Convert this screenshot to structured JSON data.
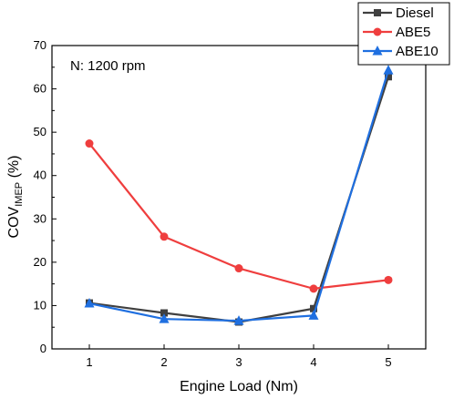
{
  "chart_data": {
    "type": "line",
    "annotation": "N: 1200 rpm",
    "xlabel": "Engine Load (Nm)",
    "ylabel": "COV",
    "ylabel_sub": "IMEP",
    "ylabel_unit": " (%)",
    "xlim": [
      0.5,
      5.5
    ],
    "ylim": [
      0,
      70
    ],
    "x_ticks": [
      "1",
      "2",
      "3",
      "4",
      "5"
    ],
    "y_ticks": [
      "0",
      "10",
      "20",
      "30",
      "40",
      "50",
      "60",
      "70"
    ],
    "x": [
      1,
      2,
      3,
      4,
      5
    ],
    "grid": false,
    "legend_position": "top-right",
    "series": [
      {
        "name": "Diesel",
        "color": "#404040",
        "marker": "square",
        "values": [
          10.6,
          8.3,
          6.2,
          9.3,
          62.8
        ]
      },
      {
        "name": "ABE5",
        "color": "#ef3e3e",
        "marker": "circle",
        "values": [
          47.4,
          25.9,
          18.6,
          13.9,
          15.9
        ]
      },
      {
        "name": "ABE10",
        "color": "#1f6fe0",
        "marker": "triangle",
        "values": [
          10.5,
          6.9,
          6.5,
          7.7,
          64.3
        ]
      }
    ]
  }
}
